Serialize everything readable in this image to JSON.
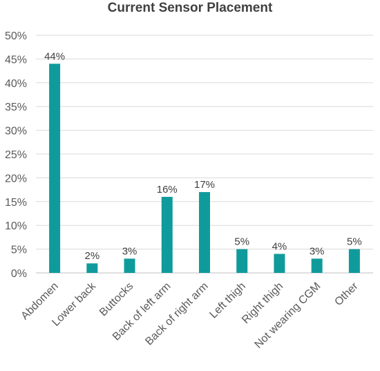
{
  "chart_data": {
    "type": "bar",
    "title": "Current Sensor Placement",
    "xlabel": "",
    "ylabel": "",
    "categories": [
      "Abdomen",
      "Lower back",
      "Buttocks",
      "Back of left arm",
      "Back of right arm",
      "Left thigh",
      "Right thigh",
      "Not wearing CGM",
      "Other"
    ],
    "values": [
      44,
      2,
      3,
      16,
      17,
      5,
      4,
      3,
      5
    ],
    "data_labels": [
      "44%",
      "2%",
      "3%",
      "16%",
      "17%",
      "5%",
      "4%",
      "3%",
      "5%"
    ],
    "ylim": [
      0,
      50
    ],
    "y_ticks": [
      0,
      5,
      10,
      15,
      20,
      25,
      30,
      35,
      40,
      45,
      50
    ],
    "y_tick_labels": [
      "0%",
      "5%",
      "10%",
      "15%",
      "20%",
      "25%",
      "30%",
      "35%",
      "40%",
      "45%",
      "50%"
    ],
    "grid": true,
    "legend": "none",
    "colors": {
      "bar": "#0f9b9c",
      "grid": "#d9d9d9",
      "axis": "#bfbfbf"
    }
  }
}
